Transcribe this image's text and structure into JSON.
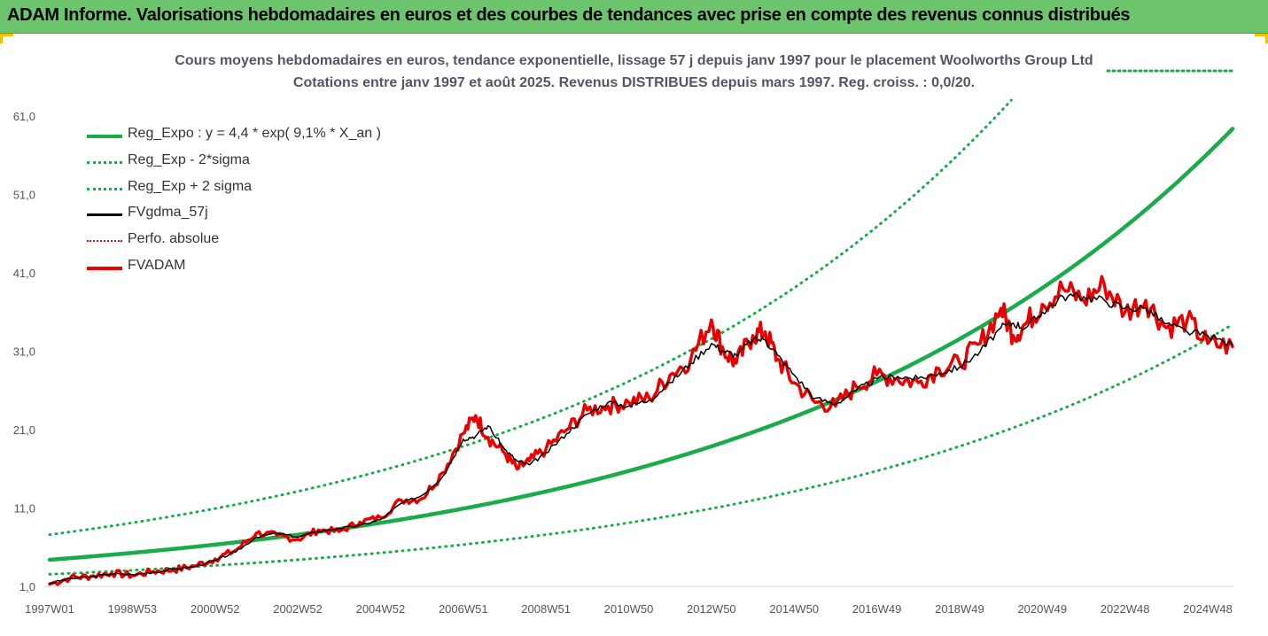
{
  "header": {
    "banner": "ADAM Informe. Valorisations hebdomadaires en euros et des courbes de tendances avec prise en compte des revenus connus distribués"
  },
  "colors": {
    "banner_bg": "#6cc46c",
    "reg_expo": "#1aab4a",
    "bands": "#1aab4a",
    "fvgdma": "#000000",
    "perfo": "#e00000",
    "fvadam": "#ee0000",
    "accent_corner": "#f2c200"
  },
  "chart_data": {
    "type": "line",
    "title": "Cours moyens hebdomadaires en euros, tendance exponentielle, lissage 57 j depuis janv 1997 pour le placement Woolworths Group Ltd",
    "subtitle": "Cotations entre janv 1997 et août 2025.  Revenus DISTRIBUES depuis mars 1997. Reg. croiss. : 0,0/20.",
    "xlabel": "",
    "ylabel": "",
    "x_range": [
      1997.0,
      2025.6
    ],
    "ylim": [
      1.0,
      66.0
    ],
    "y_ticks": [
      "1,0",
      "11,0",
      "21,0",
      "31,0",
      "41,0",
      "51,0",
      "61,0"
    ],
    "y_tick_values": [
      1,
      11,
      21,
      31,
      41,
      51,
      61
    ],
    "x_ticks": [
      "1997W01",
      "1998W53",
      "2000W52",
      "2002W52",
      "2004W52",
      "2006W51",
      "2008W51",
      "2010W50",
      "2012W50",
      "2014W50",
      "2016W49",
      "2018W49",
      "2020W49",
      "2022W48",
      "2024W48"
    ],
    "x_tick_values": [
      1997.0,
      1999.0,
      2001.0,
      2003.0,
      2005.0,
      2007.0,
      2009.0,
      2011.0,
      2013.0,
      2015.0,
      2017.0,
      2019.0,
      2021.0,
      2023.0,
      2025.0
    ],
    "grid": false,
    "legend_position": "top-left",
    "series": [
      {
        "name": "Reg_Expo : y = 4,4 * exp( 9,1% *  X_an )",
        "style": "solid-thick",
        "color": "#1aab4a",
        "function": "expo",
        "a": 4.4,
        "b": 0.091
      },
      {
        "name": "Reg_Exp - 2*sigma",
        "style": "dotted",
        "color": "#1aab4a",
        "function": "expo",
        "a": 2.55,
        "b": 0.091
      },
      {
        "name": "Reg_Exp + 2 sigma",
        "style": "dotted",
        "color": "#1aab4a",
        "function": "expo",
        "a": 7.6,
        "b": 0.091
      },
      {
        "name": "FVgdma_57j",
        "style": "solid",
        "color": "#000000",
        "x": [
          1997.0,
          1997.5,
          1998.0,
          1998.5,
          1999.0,
          1999.5,
          2000.0,
          2000.5,
          2001.0,
          2001.5,
          2002.0,
          2002.5,
          2003.0,
          2003.5,
          2004.0,
          2004.5,
          2005.0,
          2005.5,
          2006.0,
          2006.5,
          2007.0,
          2007.3,
          2007.6,
          2008.0,
          2008.3,
          2008.6,
          2009.0,
          2009.5,
          2010.0,
          2010.5,
          2011.0,
          2011.5,
          2012.0,
          2012.5,
          2013.0,
          2013.3,
          2013.6,
          2014.0,
          2014.3,
          2014.6,
          2015.0,
          2015.5,
          2016.0,
          2016.5,
          2017.0,
          2017.5,
          2018.0,
          2018.5,
          2019.0,
          2019.5,
          2020.0,
          2020.3,
          2020.6,
          2021.0,
          2021.5,
          2022.0,
          2022.5,
          2023.0,
          2023.5,
          2024.0,
          2024.5,
          2025.0,
          2025.6
        ],
        "y": [
          1.4,
          2.0,
          2.2,
          2.6,
          2.5,
          2.8,
          3.2,
          3.5,
          4.3,
          5.4,
          7.3,
          7.8,
          7.3,
          8.0,
          8.4,
          8.8,
          9.5,
          11.6,
          12.6,
          15.0,
          19.8,
          20.2,
          21.5,
          18.5,
          17.0,
          16.5,
          18.0,
          20.5,
          23.0,
          24.5,
          24.0,
          24.8,
          27.0,
          29.5,
          32.0,
          31.0,
          30.5,
          32.5,
          32.5,
          30.5,
          28.0,
          25.0,
          24.3,
          26.0,
          27.5,
          27.8,
          27.5,
          28.2,
          29.0,
          31.0,
          34.0,
          34.6,
          34.0,
          36.0,
          38.0,
          38.0,
          37.5,
          36.5,
          36.5,
          34.5,
          33.5,
          33.0,
          31.8
        ]
      },
      {
        "name": "Perfo. absolue",
        "style": "dotted",
        "color": "#e00000",
        "same_as": "FVADAM"
      },
      {
        "name": "FVADAM",
        "style": "solid-thick",
        "color": "#ee0000",
        "x": [
          1997.0,
          1997.5,
          1998.0,
          1998.5,
          1999.0,
          1999.5,
          2000.0,
          2000.5,
          2001.0,
          2001.5,
          2002.0,
          2002.5,
          2003.0,
          2003.5,
          2004.0,
          2004.5,
          2005.0,
          2005.5,
          2006.0,
          2006.5,
          2007.0,
          2007.3,
          2007.6,
          2008.0,
          2008.3,
          2008.6,
          2009.0,
          2009.5,
          2010.0,
          2010.5,
          2011.0,
          2011.5,
          2012.0,
          2012.5,
          2013.0,
          2013.3,
          2013.6,
          2014.0,
          2014.3,
          2014.6,
          2015.0,
          2015.5,
          2016.0,
          2016.5,
          2017.0,
          2017.5,
          2018.0,
          2018.5,
          2019.0,
          2019.5,
          2020.0,
          2020.3,
          2020.6,
          2021.0,
          2021.5,
          2022.0,
          2022.5,
          2023.0,
          2023.5,
          2024.0,
          2024.5,
          2025.0,
          2025.6
        ],
        "y": [
          1.3,
          2.1,
          2.3,
          2.7,
          2.4,
          2.9,
          3.1,
          3.6,
          4.5,
          5.6,
          7.8,
          7.5,
          7.0,
          8.2,
          8.0,
          9.2,
          9.8,
          12.0,
          12.2,
          15.5,
          20.5,
          22.8,
          20.0,
          18.0,
          16.0,
          17.0,
          18.5,
          21.0,
          23.5,
          24.0,
          24.5,
          25.0,
          28.0,
          30.0,
          35.0,
          31.0,
          29.5,
          33.0,
          33.5,
          30.0,
          27.0,
          24.5,
          24.0,
          26.5,
          28.0,
          27.5,
          27.0,
          28.8,
          29.5,
          32.0,
          36.5,
          33.0,
          34.5,
          37.0,
          39.0,
          37.5,
          39.5,
          36.0,
          37.5,
          34.0,
          35.0,
          32.0,
          31.6
        ]
      }
    ]
  }
}
